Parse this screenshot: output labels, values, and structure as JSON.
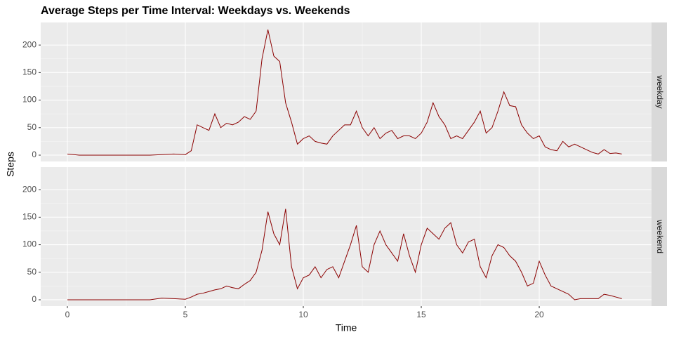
{
  "chart_data": [
    {
      "type": "line",
      "title": "Average Steps per Time Interval: Weekdays vs. Weekends",
      "y_label": "Steps",
      "x": [
        0,
        0.5,
        1,
        1.5,
        2,
        2.5,
        3,
        3.5,
        4,
        4.5,
        5,
        5.25,
        5.5,
        5.75,
        6,
        6.25,
        6.5,
        6.75,
        7,
        7.25,
        7.5,
        7.75,
        8,
        8.25,
        8.5,
        8.75,
        9,
        9.25,
        9.5,
        9.75,
        10,
        10.25,
        10.5,
        10.75,
        11,
        11.25,
        11.5,
        11.75,
        12,
        12.25,
        12.5,
        12.75,
        13,
        13.25,
        13.5,
        13.75,
        14,
        14.25,
        14.5,
        14.75,
        15,
        15.25,
        15.5,
        15.75,
        16,
        16.25,
        16.5,
        16.75,
        17,
        17.25,
        17.5,
        17.75,
        18,
        18.25,
        18.5,
        18.75,
        19,
        19.25,
        19.5,
        19.75,
        20,
        20.25,
        20.5,
        20.75,
        21,
        21.25,
        21.5,
        21.75,
        22,
        22.25,
        22.5,
        22.75,
        23,
        23.25,
        23.5
      ],
      "series": [
        {
          "name": "weekday",
          "color": "#8b0000",
          "values": [
            2,
            0,
            0,
            0,
            0,
            0,
            0,
            0,
            1,
            2,
            1,
            8,
            55,
            50,
            45,
            75,
            50,
            58,
            55,
            60,
            70,
            65,
            80,
            175,
            228,
            180,
            170,
            95,
            60,
            20,
            30,
            35,
            25,
            22,
            20,
            35,
            45,
            55,
            55,
            80,
            50,
            35,
            50,
            30,
            40,
            45,
            30,
            35,
            35,
            30,
            40,
            60,
            95,
            70,
            55,
            30,
            35,
            30,
            45,
            60,
            80,
            40,
            50,
            80,
            115,
            90,
            88,
            55,
            40,
            30,
            35,
            15,
            10,
            8,
            25,
            15,
            20,
            15,
            10,
            5,
            2,
            10,
            3,
            4,
            2
          ]
        }
      ],
      "xlim": [
        -1.13,
        24.76
      ],
      "xticks": [
        0,
        5,
        10,
        15,
        20
      ],
      "ylim": [
        -11.5,
        241
      ],
      "yticks": [
        0,
        50,
        100,
        150,
        200
      ],
      "grid": true,
      "minor_grid": true
    },
    {
      "type": "line",
      "x_label": "Time",
      "x": [
        0,
        0.5,
        1,
        1.5,
        2,
        2.5,
        3,
        3.5,
        4,
        4.5,
        5,
        5.25,
        5.5,
        5.75,
        6,
        6.25,
        6.5,
        6.75,
        7,
        7.25,
        7.5,
        7.75,
        8,
        8.25,
        8.5,
        8.75,
        9,
        9.25,
        9.5,
        9.75,
        10,
        10.25,
        10.5,
        10.75,
        11,
        11.25,
        11.5,
        11.75,
        12,
        12.25,
        12.5,
        12.75,
        13,
        13.25,
        13.5,
        13.75,
        14,
        14.25,
        14.5,
        14.75,
        15,
        15.25,
        15.5,
        15.75,
        16,
        16.25,
        16.5,
        16.75,
        17,
        17.25,
        17.5,
        17.75,
        18,
        18.25,
        18.5,
        18.75,
        19,
        19.25,
        19.5,
        19.75,
        20,
        20.25,
        20.5,
        20.75,
        21,
        21.25,
        21.5,
        21.75,
        22,
        22.25,
        22.5,
        22.75,
        23,
        23.25,
        23.5
      ],
      "series": [
        {
          "name": "weekend",
          "color": "#8b0000",
          "values": [
            0,
            0,
            0,
            0,
            0,
            0,
            0,
            0,
            3,
            2,
            1,
            5,
            10,
            12,
            15,
            18,
            20,
            25,
            22,
            20,
            28,
            35,
            50,
            90,
            160,
            120,
            100,
            165,
            60,
            20,
            40,
            45,
            60,
            40,
            55,
            60,
            40,
            70,
            100,
            135,
            60,
            50,
            100,
            125,
            100,
            85,
            70,
            120,
            80,
            50,
            100,
            130,
            120,
            110,
            130,
            140,
            100,
            85,
            105,
            110,
            60,
            40,
            80,
            100,
            95,
            80,
            70,
            50,
            25,
            30,
            70,
            45,
            25,
            20,
            15,
            10,
            0,
            2,
            2,
            2,
            2,
            10,
            8,
            5,
            2
          ]
        }
      ],
      "xlim": [
        -1.13,
        24.76
      ],
      "xticks": [
        0,
        5,
        10,
        15,
        20
      ],
      "ylim": [
        -11.5,
        241
      ],
      "yticks": [
        0,
        50,
        100,
        150,
        200
      ],
      "grid": true,
      "minor_grid": true
    }
  ]
}
